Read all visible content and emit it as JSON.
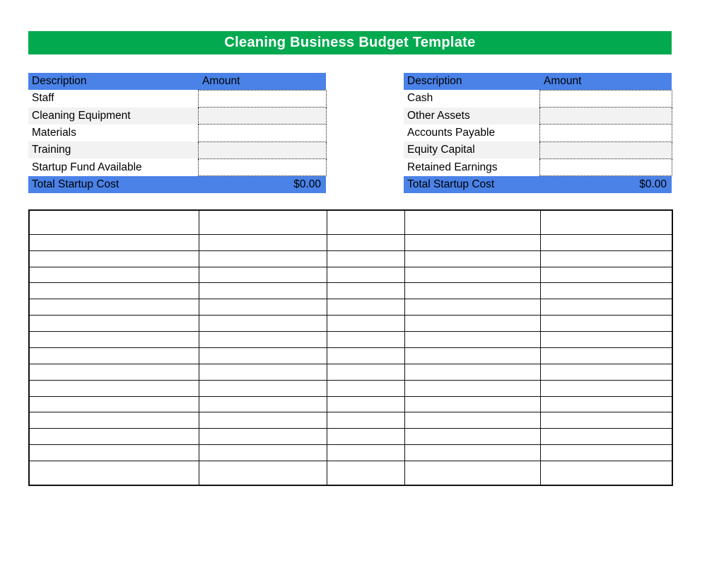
{
  "title": "Cleaning Business Budget Template",
  "colors": {
    "banner_green": "#03A94F",
    "header_blue": "#4A82E8",
    "stripe_gray": "#F2F2F2",
    "grid_line": "#111111"
  },
  "startup_table": {
    "headers": {
      "description": "Description",
      "amount": "Amount"
    },
    "rows": [
      {
        "label": "Staff",
        "amount": ""
      },
      {
        "label": "Cleaning Equipment",
        "amount": ""
      },
      {
        "label": "Materials",
        "amount": ""
      },
      {
        "label": "Training",
        "amount": ""
      },
      {
        "label": "Startup Fund Available",
        "amount": ""
      }
    ],
    "total": {
      "label": "Total Startup Cost",
      "value": "$0.00"
    }
  },
  "balance_table": {
    "headers": {
      "description": "Description",
      "amount": "Amount"
    },
    "rows": [
      {
        "label": "Cash",
        "amount": ""
      },
      {
        "label": "Other Assets",
        "amount": ""
      },
      {
        "label": "Accounts Payable",
        "amount": ""
      },
      {
        "label": "Equity Capital",
        "amount": ""
      },
      {
        "label": "Retained Earnings",
        "amount": ""
      }
    ],
    "total": {
      "label": "Total Startup Cost",
      "value": "$0.00"
    }
  },
  "worksheet_grid": {
    "rows": 16,
    "columns": 5
  }
}
